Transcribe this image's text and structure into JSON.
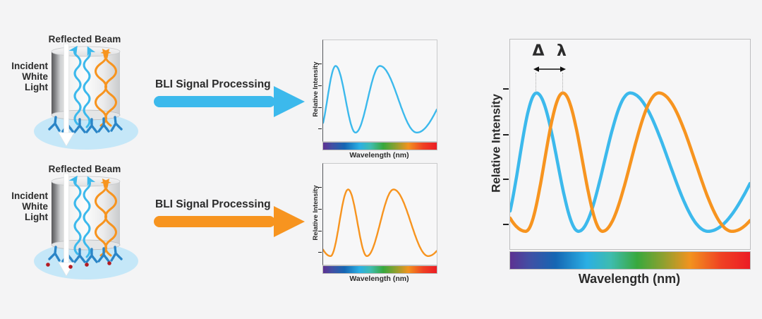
{
  "page": {
    "background": "#f4f4f5"
  },
  "colors": {
    "blue": "#3cb9ec",
    "orange": "#f7941f",
    "text": "#2b2b2b",
    "puddle_blue": "#c5e7f8",
    "antibody_blue": "#2a85c7",
    "analyte_red": "#b31b22"
  },
  "biosensors": [
    {
      "reflected_beam_label": "Reflected Beam",
      "incident_label_lines": [
        "Incident",
        "White",
        "Light"
      ],
      "bound_analyte": false
    },
    {
      "reflected_beam_label": "Reflected Beam",
      "incident_label_lines": [
        "Incident",
        "White",
        "Light"
      ],
      "bound_analyte": true
    }
  ],
  "process_arrows": [
    {
      "label": "BLI Signal Processing",
      "color": "#3cb9ec"
    },
    {
      "label": "BLI Signal Processing",
      "color": "#f7941f"
    }
  ],
  "small_charts": [
    {
      "ylabel": "Relative Intensity",
      "xlabel": "Wavelength (nm)"
    },
    {
      "ylabel": "Relative Intensity",
      "xlabel": "Wavelength (nm)"
    }
  ],
  "big_chart": {
    "ylabel": "Relative Intensity",
    "xlabel": "Wavelength (nm)",
    "annotation": {
      "delta": "Δ",
      "lambda": "λ"
    }
  },
  "chart_data": {
    "charts": [
      {
        "id": "small-blue",
        "type": "line",
        "xlabel": "Wavelength (nm)",
        "ylabel": "Relative Intensity",
        "series": [
          "blue"
        ],
        "x_axis": "visible-spectrum colorbar, no numeric ticks",
        "y_ticks": 4
      },
      {
        "id": "small-orange",
        "type": "line",
        "xlabel": "Wavelength (nm)",
        "ylabel": "Relative Intensity",
        "series": [
          "orange"
        ],
        "x_axis": "visible-spectrum colorbar, no numeric ticks",
        "y_ticks": 4
      },
      {
        "id": "large",
        "type": "line",
        "xlabel": "Wavelength (nm)",
        "ylabel": "Relative Intensity",
        "series": [
          "blue",
          "orange"
        ],
        "annotation": "Δ λ peak shift between first blue and orange maxima",
        "x_axis": "visible-spectrum colorbar, no numeric ticks",
        "y_ticks": 4
      }
    ],
    "series_defs": {
      "blue": {
        "color": "#3cb9ec",
        "midline_frac": 0.585,
        "amplitude_frac": 0.33,
        "phase_anchors_pi": [
          [
            0,
            -0.75
          ],
          [
            0.11,
            0
          ],
          [
            0.285,
            1
          ],
          [
            0.5,
            2
          ],
          [
            0.825,
            3
          ],
          [
            1,
            3.4
          ]
        ]
      },
      "orange": {
        "color": "#f7941f",
        "midline_frac": 0.585,
        "amplitude_frac": 0.33,
        "phase_anchors_pi": [
          [
            0,
            0.8
          ],
          [
            0.065,
            1
          ],
          [
            0.22,
            2
          ],
          [
            0.385,
            3
          ],
          [
            0.62,
            4
          ],
          [
            0.925,
            5
          ],
          [
            1,
            5.18
          ]
        ]
      }
    },
    "spectrum_gradient": [
      "#5d3191",
      "#414fa4",
      "#1566b3",
      "#2bafe4",
      "#3fbcae",
      "#38a83d",
      "#8fa02f",
      "#f2931f",
      "#ef4123",
      "#ec1c24"
    ],
    "peak_shift": {
      "blue_peak_x_frac": 0.11,
      "orange_peak_x_frac": 0.22
    }
  }
}
